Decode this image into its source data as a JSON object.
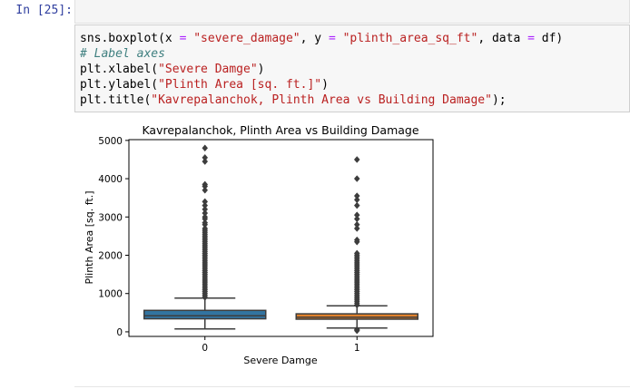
{
  "cell": {
    "prompt": "In [25]:"
  },
  "code": {
    "line1": {
      "a": "sns.boxplot(x ",
      "eq1": "=",
      "b": " ",
      "s1": "\"severe_damage\"",
      "c": ", y ",
      "eq2": "=",
      "d": " ",
      "s2": "\"plinth_area_sq_ft\"",
      "e": ", data ",
      "eq3": "=",
      "f": " df)"
    },
    "line2": "# Label axes",
    "line3": {
      "a": "plt.xlabel(",
      "s": "\"Severe Damge\"",
      "b": ")"
    },
    "line4": {
      "a": "plt.ylabel(",
      "s": "\"Plinth Area [sq. ft.]\"",
      "b": ")"
    },
    "line5": {
      "a": "plt.title(",
      "s": "\"Kavrepalanchok, Plinth Area vs Building Damage\"",
      "b": ");"
    }
  },
  "chart_data": {
    "type": "box",
    "title": "Kavrepalanchok, Plinth Area vs Building Damage",
    "xlabel": "Severe Damge",
    "ylabel": "Plinth Area [sq. ft.]",
    "categories": [
      "0",
      "1"
    ],
    "ylim": [
      -120,
      5020
    ],
    "yticks": [
      0,
      1000,
      2000,
      3000,
      4000,
      5000
    ],
    "grid": false,
    "colors": [
      "#3274a1",
      "#e1812c"
    ],
    "boxes": [
      {
        "category": "0",
        "whisker_low": 75,
        "q1": 340,
        "median": 420,
        "q3": 560,
        "whisker_high": 880,
        "outliers": [
          900,
          950,
          1000,
          1050,
          1100,
          1150,
          1200,
          1250,
          1300,
          1350,
          1400,
          1450,
          1500,
          1550,
          1600,
          1650,
          1700,
          1750,
          1800,
          1850,
          1900,
          1950,
          2000,
          2050,
          2100,
          2150,
          2200,
          2250,
          2300,
          2350,
          2400,
          2450,
          2500,
          2550,
          2600,
          2650,
          2700,
          2800,
          2850,
          2950,
          3000,
          3100,
          3200,
          3300,
          3400,
          3700,
          3800,
          3850,
          4450,
          4550,
          4800
        ]
      },
      {
        "category": "1",
        "whisker_low": 100,
        "q1": 330,
        "median": 380,
        "q3": 470,
        "whisker_high": 680,
        "outliers": [
          30,
          60,
          700,
          750,
          800,
          850,
          900,
          950,
          1000,
          1050,
          1100,
          1150,
          1200,
          1250,
          1300,
          1350,
          1400,
          1450,
          1500,
          1550,
          1600,
          1650,
          1700,
          1750,
          1800,
          1850,
          1900,
          1950,
          2000,
          2050,
          2350,
          2400,
          2700,
          2800,
          2950,
          3050,
          3300,
          3450,
          3550,
          4000,
          4500
        ]
      }
    ]
  }
}
